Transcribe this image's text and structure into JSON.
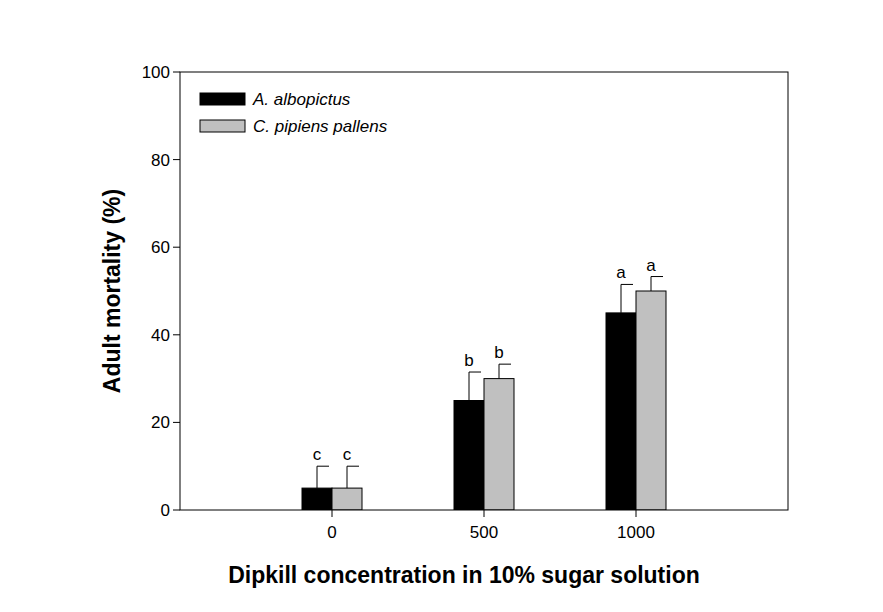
{
  "chart_data": {
    "type": "bar",
    "x_label": "Dipkill concentration in 10% sugar solution",
    "y_label": "Adult mortality (%)",
    "categories": [
      "0",
      "500",
      "1000"
    ],
    "series": [
      {
        "name": "A. albopictus",
        "color": "#000000",
        "values": [
          5,
          25,
          45
        ],
        "error": [
          5,
          6.5,
          6.5
        ],
        "annotations": [
          "c",
          "b",
          "a"
        ]
      },
      {
        "name": "C. pipiens pallens",
        "color": "#c0c0c0",
        "values": [
          5,
          30,
          50
        ],
        "error": [
          5,
          3.3,
          3.3
        ],
        "annotations": [
          "c",
          "b",
          "a"
        ]
      }
    ],
    "ylim": [
      0,
      100
    ],
    "yticks": [
      0,
      20,
      40,
      60,
      80,
      100
    ],
    "grid": false,
    "legend": "upper left"
  }
}
